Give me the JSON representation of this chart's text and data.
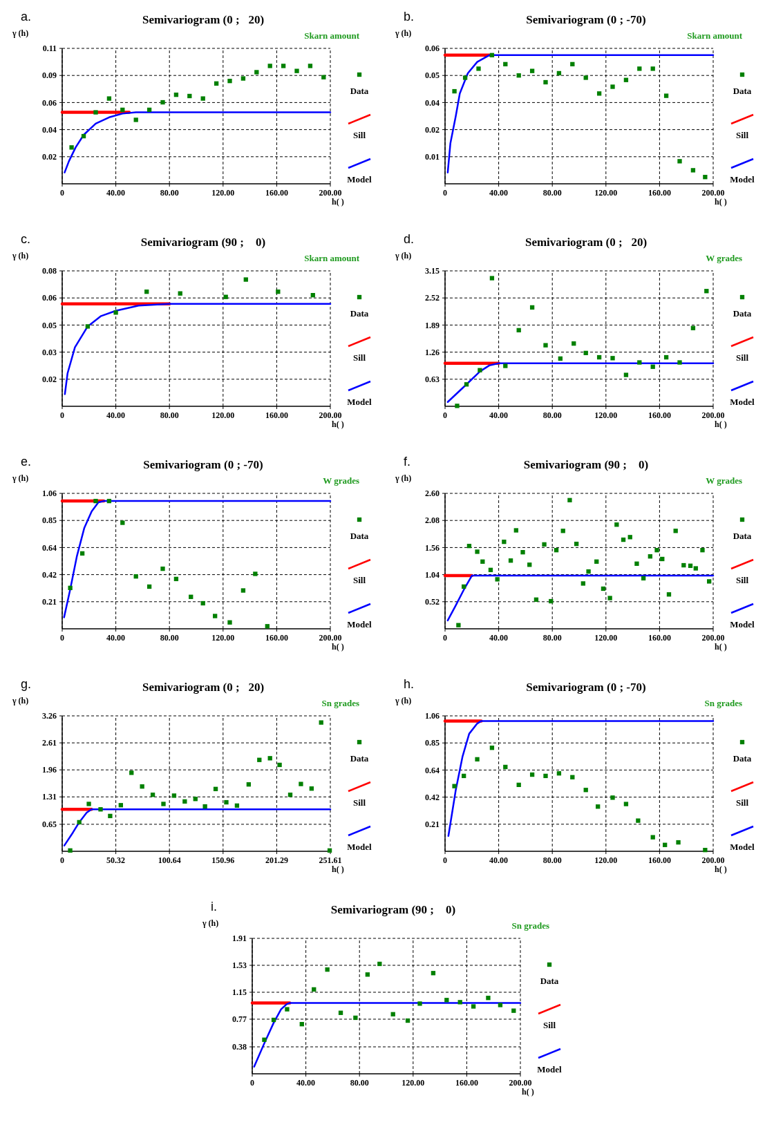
{
  "chart_data": [
    {
      "type": "scatter",
      "title": "Semivariogram (0 ;   20)",
      "subtitle": "Skarn amount",
      "annotations": [
        "a."
      ],
      "xlabel": "h( )",
      "ylabel": "γ (h)",
      "xlim": [
        0,
        200
      ],
      "xticks": [
        0,
        {
          "value": 40,
          "label": "40.00"
        },
        {
          "value": 80,
          "label": "80.00"
        },
        {
          "value": 120,
          "label": "120.00"
        },
        {
          "value": 160,
          "label": "160.00"
        },
        {
          "value": 200,
          "label": "200.00"
        }
      ],
      "ylim": [
        0,
        0.108
      ],
      "yticks": [
        {
          "value": 0.0216,
          "label": "0.02"
        },
        {
          "value": 0.0432,
          "label": "0.04"
        },
        {
          "value": 0.0648,
          "label": "0.06"
        },
        {
          "value": 0.0864,
          "label": "0.09"
        },
        {
          "value": 0.108,
          "label": "0.11"
        }
      ],
      "grid": true,
      "legend": "right",
      "series": [
        {
          "name": "Data",
          "type": "scatter",
          "marker": "square",
          "color": "#008000",
          "x": [
            7,
            16,
            25,
            35,
            45,
            55,
            65,
            75,
            85,
            95,
            105,
            115,
            125,
            135,
            145,
            155,
            165,
            175,
            185,
            195
          ],
          "values": [
            0.029,
            0.038,
            0.057,
            0.068,
            0.059,
            0.051,
            0.059,
            0.065,
            0.071,
            0.07,
            0.068,
            0.08,
            0.082,
            0.084,
            0.089,
            0.094,
            0.094,
            0.09,
            0.094,
            0.085
          ]
        },
        {
          "name": "Sill",
          "type": "line",
          "color": "#ff0000",
          "x": [
            0,
            50
          ],
          "values": [
            0.057,
            0.057
          ]
        },
        {
          "name": "Model",
          "type": "line",
          "color": "#0000ff",
          "x": [
            1.8,
            5,
            10,
            16,
            25,
            35,
            45,
            55,
            200
          ],
          "values": [
            0.009,
            0.018,
            0.029,
            0.039,
            0.048,
            0.053,
            0.056,
            0.057,
            0.057
          ]
        }
      ]
    },
    {
      "type": "scatter",
      "title": "Semivariogram (0 ; -70)",
      "subtitle": "Skarn amount",
      "annotations": [
        "b."
      ],
      "xlabel": "h( )",
      "ylabel": "γ (h)",
      "xlim": [
        0,
        200
      ],
      "xticks": [
        0,
        {
          "value": 40,
          "label": "40.00"
        },
        {
          "value": 80,
          "label": "80.00"
        },
        {
          "value": 120,
          "label": "120.00"
        },
        {
          "value": 160,
          "label": "160.00"
        },
        {
          "value": 200,
          "label": "200.00"
        }
      ],
      "ylim": [
        0,
        0.06
      ],
      "yticks": [
        {
          "value": 0.012,
          "label": "0.01"
        },
        {
          "value": 0.024,
          "label": "0.02"
        },
        {
          "value": 0.036,
          "label": "0.04"
        },
        {
          "value": 0.048,
          "label": "0.05"
        },
        {
          "value": 0.06,
          "label": "0.06"
        }
      ],
      "grid": true,
      "legend": "right",
      "series": [
        {
          "name": "Data",
          "type": "scatter",
          "marker": "square",
          "color": "#008000",
          "x": [
            7,
            15,
            25,
            35,
            45,
            55,
            65,
            75,
            85,
            95,
            105,
            115,
            125,
            135,
            145,
            155,
            165,
            175,
            185,
            194
          ],
          "values": [
            0.041,
            0.047,
            0.051,
            0.057,
            0.053,
            0.048,
            0.05,
            0.045,
            0.049,
            0.053,
            0.047,
            0.04,
            0.043,
            0.046,
            0.051,
            0.051,
            0.039,
            0.01,
            0.006,
            0.003
          ]
        },
        {
          "name": "Sill",
          "type": "line",
          "color": "#ff0000",
          "x": [
            0,
            33
          ],
          "values": [
            0.057,
            0.057
          ]
        },
        {
          "name": "Model",
          "type": "line",
          "color": "#0000ff",
          "x": [
            2,
            4,
            8,
            11,
            17,
            24,
            33,
            200
          ],
          "values": [
            0.005,
            0.018,
            0.03,
            0.04,
            0.049,
            0.054,
            0.057,
            0.057
          ]
        }
      ]
    },
    {
      "type": "scatter",
      "title": "Semivariogram (90 ;    0)",
      "subtitle": "Skarn amount",
      "annotations": [
        "c."
      ],
      "xlabel": "h( )",
      "ylabel": "γ (h)",
      "xlim": [
        0,
        200
      ],
      "xticks": [
        0,
        {
          "value": 40,
          "label": "40.00"
        },
        {
          "value": 80,
          "label": "80.00"
        },
        {
          "value": 120,
          "label": "120.00"
        },
        {
          "value": 160,
          "label": "160.00"
        },
        {
          "value": 200,
          "label": "200.00"
        }
      ],
      "ylim": [
        0,
        0.078
      ],
      "yticks": [
        {
          "value": 0.0156,
          "label": "0.02"
        },
        {
          "value": 0.0312,
          "label": "0.03"
        },
        {
          "value": 0.0468,
          "label": "0.05"
        },
        {
          "value": 0.0624,
          "label": "0.06"
        },
        {
          "value": 0.078,
          "label": "0.08"
        }
      ],
      "grid": true,
      "legend": "right",
      "series": [
        {
          "name": "Data",
          "type": "scatter",
          "marker": "square",
          "color": "#008000",
          "x": [
            19,
            40,
            63,
            88,
            122,
            137,
            161,
            187
          ],
          "values": [
            0.046,
            0.054,
            0.066,
            0.065,
            0.063,
            0.073,
            0.066,
            0.064
          ]
        },
        {
          "name": "Sill",
          "type": "line",
          "color": "#ff0000",
          "x": [
            0,
            80
          ],
          "values": [
            0.059,
            0.059
          ]
        },
        {
          "name": "Model",
          "type": "line",
          "color": "#0000ff",
          "x": [
            2,
            4,
            9.5,
            19,
            29,
            40,
            57,
            80,
            200
          ],
          "values": [
            0.007,
            0.019,
            0.034,
            0.046,
            0.052,
            0.055,
            0.058,
            0.059,
            0.059
          ]
        }
      ]
    },
    {
      "type": "scatter",
      "title": "Semivariogram (0 ;   20)",
      "subtitle": "W grades",
      "annotations": [
        "d."
      ],
      "xlabel": "h( )",
      "ylabel": "γ (h)",
      "xlim": [
        0,
        200
      ],
      "xticks": [
        0,
        {
          "value": 40,
          "label": "40.00"
        },
        {
          "value": 80,
          "label": "80.00"
        },
        {
          "value": 120,
          "label": "120.00"
        },
        {
          "value": 160,
          "label": "160.00"
        },
        {
          "value": 200,
          "label": "200.00"
        }
      ],
      "ylim": [
        0,
        3.15
      ],
      "yticks": [
        0.63,
        1.26,
        1.89,
        2.52,
        3.15
      ],
      "grid": true,
      "legend": "right",
      "series": [
        {
          "name": "Data",
          "type": "scatter",
          "marker": "square",
          "color": "#008000",
          "x": [
            9,
            16,
            26,
            35,
            45,
            55,
            65,
            75,
            86,
            96,
            105,
            115,
            125,
            135,
            145,
            155,
            165,
            175,
            185,
            195
          ],
          "values": [
            0.01,
            0.51,
            0.84,
            2.98,
            0.94,
            1.77,
            2.3,
            1.42,
            1.11,
            1.46,
            1.24,
            1.14,
            1.12,
            0.73,
            1.02,
            0.92,
            1.14,
            1.02,
            1.82,
            2.68
          ]
        },
        {
          "name": "Sill",
          "type": "line",
          "color": "#ff0000",
          "x": [
            0,
            40
          ],
          "values": [
            1.0,
            1.0
          ]
        },
        {
          "name": "Model",
          "type": "line",
          "color": "#0000ff",
          "x": [
            2,
            16,
            26,
            33,
            40,
            200
          ],
          "values": [
            0.1,
            0.51,
            0.81,
            0.95,
            1.0,
            1.0
          ]
        }
      ]
    },
    {
      "type": "scatter",
      "title": "Semivariogram (0 ; -70)",
      "subtitle": "W grades",
      "annotations": [
        "e."
      ],
      "xlabel": "h( )",
      "ylabel": "γ (h)",
      "xlim": [
        0,
        200
      ],
      "xticks": [
        0,
        {
          "value": 40,
          "label": "40.00"
        },
        {
          "value": 80,
          "label": "80.00"
        },
        {
          "value": 120,
          "label": "120.00"
        },
        {
          "value": 160,
          "label": "160.00"
        },
        {
          "value": 200,
          "label": "200.00"
        }
      ],
      "ylim": [
        0,
        1.06
      ],
      "yticks": [
        {
          "value": 0.212,
          "label": "0.21"
        },
        {
          "value": 0.424,
          "label": "0.42"
        },
        {
          "value": 0.636,
          "label": "0.64"
        },
        {
          "value": 0.848,
          "label": "0.85"
        },
        {
          "value": 1.06,
          "label": "1.06"
        }
      ],
      "grid": true,
      "legend": "right",
      "series": [
        {
          "name": "Data",
          "type": "scatter",
          "marker": "square",
          "color": "#008000",
          "x": [
            6,
            15,
            25,
            35,
            45,
            55,
            65,
            75,
            85,
            96,
            105,
            114,
            125,
            135,
            144,
            153
          ],
          "values": [
            0.32,
            0.59,
            1.0,
            1.0,
            0.83,
            0.41,
            0.33,
            0.47,
            0.39,
            0.25,
            0.2,
            0.1,
            0.05,
            0.3,
            0.43,
            0.02
          ]
        },
        {
          "name": "Sill",
          "type": "line",
          "color": "#ff0000",
          "x": [
            0,
            31
          ],
          "values": [
            1.0,
            1.0
          ]
        },
        {
          "name": "Model",
          "type": "line",
          "color": "#0000ff",
          "x": [
            1.4,
            6,
            11,
            16.5,
            22,
            27,
            31,
            200
          ],
          "values": [
            0.09,
            0.31,
            0.57,
            0.79,
            0.92,
            0.99,
            1.0,
            1.0
          ]
        }
      ]
    },
    {
      "type": "scatter",
      "title": "Semivariogram (90 ;    0)",
      "subtitle": "W grades",
      "annotations": [
        "f."
      ],
      "xlabel": "h( )",
      "ylabel": "γ (h)",
      "xlim": [
        0,
        200
      ],
      "xticks": [
        0,
        {
          "value": 40,
          "label": "40.00"
        },
        {
          "value": 80,
          "label": "80.00"
        },
        {
          "value": 120,
          "label": "120.00"
        },
        {
          "value": 160,
          "label": "160.00"
        },
        {
          "value": 200,
          "label": "200.00"
        }
      ],
      "ylim": [
        0,
        2.6
      ],
      "yticks": [
        0.52,
        1.04,
        1.56,
        2.08,
        {
          "value": 2.6,
          "label": "2.60"
        }
      ],
      "grid": true,
      "legend": "right",
      "series": [
        {
          "name": "Data",
          "type": "scatter",
          "marker": "square",
          "color": "#008000",
          "x": [
            10,
            14,
            18,
            24,
            28,
            34,
            39,
            44,
            49,
            53,
            58,
            63,
            68,
            74,
            79,
            83,
            88,
            93,
            98,
            103,
            107,
            113,
            118,
            123,
            128,
            133,
            138,
            143,
            148,
            153,
            158,
            162,
            167,
            172,
            178,
            183,
            187,
            192,
            197
          ],
          "values": [
            0.07,
            0.81,
            1.59,
            1.48,
            1.29,
            1.13,
            0.95,
            1.67,
            1.31,
            1.89,
            1.47,
            1.23,
            0.56,
            1.62,
            0.53,
            1.51,
            1.88,
            2.47,
            1.63,
            0.87,
            1.1,
            1.29,
            0.77,
            0.59,
            2.0,
            1.71,
            1.76,
            1.25,
            0.97,
            1.39,
            1.51,
            1.34,
            0.66,
            1.88,
            1.22,
            1.21,
            1.16,
            1.51,
            0.91
          ]
        },
        {
          "name": "Sill",
          "type": "line",
          "color": "#ff0000",
          "x": [
            0,
            20
          ],
          "values": [
            1.02,
            1.02
          ]
        },
        {
          "name": "Model",
          "type": "line",
          "color": "#0000ff",
          "x": [
            2,
            8,
            14,
            20,
            200
          ],
          "values": [
            0.16,
            0.45,
            0.75,
            1.02,
            1.02
          ]
        }
      ]
    },
    {
      "type": "scatter",
      "title": "Semivariogram (0 ;   20)",
      "subtitle": "Sn grades",
      "annotations": [
        "g."
      ],
      "xlabel": "h( )",
      "ylabel": "γ (h)",
      "xlim": [
        0,
        251.61
      ],
      "xticks": [
        0,
        50.32,
        100.64,
        150.96,
        201.29,
        251.61
      ],
      "ylim": [
        0,
        3.26
      ],
      "yticks": [
        0.65,
        1.31,
        1.96,
        2.61,
        3.26
      ],
      "grid": true,
      "legend": "right",
      "series": [
        {
          "name": "Data",
          "type": "scatter",
          "marker": "square",
          "color": "#008000",
          "x": [
            7.5,
            16,
            25,
            36,
            45,
            55,
            65,
            75,
            85,
            95,
            105,
            115,
            125,
            134,
            144,
            154,
            164,
            175,
            185,
            195,
            204,
            214,
            224,
            234,
            243,
            251
          ],
          "values": [
            0.02,
            0.7,
            1.14,
            1.01,
            0.85,
            1.11,
            1.89,
            1.56,
            1.36,
            1.14,
            1.34,
            1.2,
            1.26,
            1.08,
            1.5,
            1.18,
            1.1,
            1.61,
            2.2,
            2.24,
            2.08,
            1.36,
            1.62,
            1.51,
            3.1,
            0.02
          ]
        },
        {
          "name": "Sill",
          "type": "line",
          "color": "#ff0000",
          "x": [
            0,
            27.5
          ],
          "values": [
            1.01,
            1.01
          ]
        },
        {
          "name": "Model",
          "type": "line",
          "color": "#0000ff",
          "x": [
            2,
            10,
            16,
            23,
            27.5,
            251.61
          ],
          "values": [
            0.14,
            0.45,
            0.7,
            0.93,
            1.01,
            1.01
          ]
        }
      ]
    },
    {
      "type": "scatter",
      "title": "Semivariogram (0 ; -70)",
      "subtitle": "Sn grades",
      "annotations": [
        "h."
      ],
      "xlabel": "h( )",
      "ylabel": "γ (h)",
      "xlim": [
        0,
        200
      ],
      "xticks": [
        0,
        {
          "value": 40,
          "label": "40.00"
        },
        {
          "value": 80,
          "label": "80.00"
        },
        {
          "value": 120,
          "label": "120.00"
        },
        {
          "value": 160,
          "label": "160.00"
        },
        {
          "value": 200,
          "label": "200.00"
        }
      ],
      "ylim": [
        0,
        1.06
      ],
      "yticks": [
        {
          "value": 0.212,
          "label": "0.21"
        },
        {
          "value": 0.424,
          "label": "0.42"
        },
        {
          "value": 0.636,
          "label": "0.64"
        },
        {
          "value": 0.848,
          "label": "0.85"
        },
        {
          "value": 1.06,
          "label": "1.06"
        }
      ],
      "grid": true,
      "legend": "right",
      "series": [
        {
          "name": "Data",
          "type": "scatter",
          "marker": "square",
          "color": "#008000",
          "x": [
            7,
            14,
            24,
            35,
            45,
            55,
            65,
            75,
            85,
            95,
            105,
            114,
            125,
            135,
            144,
            155,
            164,
            174,
            194
          ],
          "values": [
            0.51,
            0.59,
            0.72,
            0.81,
            0.66,
            0.52,
            0.6,
            0.59,
            0.61,
            0.58,
            0.48,
            0.35,
            0.42,
            0.37,
            0.24,
            0.11,
            0.05,
            0.07,
            0.01
          ]
        },
        {
          "name": "Sill",
          "type": "line",
          "color": "#ff0000",
          "x": [
            0,
            27
          ],
          "values": [
            1.02,
            1.02
          ]
        },
        {
          "name": "Model",
          "type": "line",
          "color": "#0000ff",
          "x": [
            2.5,
            8,
            13,
            18,
            24,
            27,
            200
          ],
          "values": [
            0.12,
            0.48,
            0.74,
            0.92,
            1.0,
            1.02,
            1.02
          ]
        }
      ]
    },
    {
      "type": "scatter",
      "title": "Semivariogram (90 ;    0)",
      "subtitle": "Sn grades",
      "annotations": [
        "i."
      ],
      "xlabel": "h( )",
      "ylabel": "γ (h)",
      "xlim": [
        0,
        200
      ],
      "xticks": [
        0,
        {
          "value": 40,
          "label": "40.00"
        },
        {
          "value": 80,
          "label": "80.00"
        },
        {
          "value": 120,
          "label": "120.00"
        },
        {
          "value": 160,
          "label": "160.00"
        },
        {
          "value": 200,
          "label": "200.00"
        }
      ],
      "ylim": [
        0,
        1.91
      ],
      "yticks": [
        0.38,
        0.77,
        1.15,
        1.53,
        1.91
      ],
      "grid": true,
      "legend": "right",
      "series": [
        {
          "name": "Data",
          "type": "scatter",
          "marker": "square",
          "color": "#008000",
          "x": [
            9,
            16,
            26,
            37,
            46,
            56,
            66,
            77,
            86,
            95,
            105,
            116,
            125,
            135,
            145,
            155,
            165,
            176,
            185,
            195
          ],
          "values": [
            0.48,
            0.76,
            0.91,
            0.7,
            1.19,
            1.47,
            0.86,
            0.79,
            1.4,
            1.55,
            0.84,
            0.75,
            0.99,
            1.42,
            1.04,
            1.01,
            0.95,
            1.07,
            0.97,
            0.89
          ]
        },
        {
          "name": "Sill",
          "type": "line",
          "color": "#ff0000",
          "x": [
            0,
            28
          ],
          "values": [
            1.0,
            1.0
          ]
        },
        {
          "name": "Model",
          "type": "line",
          "color": "#0000ff",
          "x": [
            1.4,
            9,
            16,
            21.5,
            25.6,
            28,
            200
          ],
          "values": [
            0.1,
            0.43,
            0.72,
            0.91,
            0.98,
            1.0,
            1.0
          ]
        }
      ]
    }
  ]
}
